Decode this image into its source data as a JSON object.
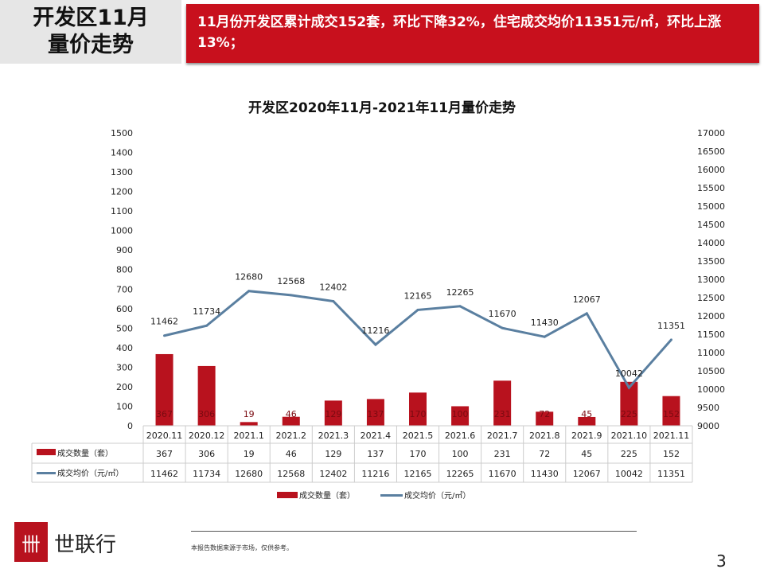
{
  "header": {
    "title_line1": "开发区11月",
    "title_line2": "量价走势",
    "summary": "11月份开发区累计成交152套，环比下降32%，住宅成交均价11351元/㎡，环比上涨13%；"
  },
  "chart_data": {
    "type": "bar+line",
    "title": "开发区2020年11月-2021年11月量价走势",
    "categories": [
      "2020.11",
      "2020.12",
      "2021.1",
      "2021.2",
      "2021.3",
      "2021.4",
      "2021.5",
      "2021.6",
      "2021.7",
      "2021.8",
      "2021.9",
      "2021.10",
      "2021.11"
    ],
    "series": [
      {
        "name": "成交数量（套）",
        "type": "bar",
        "axis": "left",
        "color": "#b8121e",
        "values": [
          367,
          306,
          19,
          46,
          129,
          137,
          170,
          100,
          231,
          72,
          45,
          225,
          152
        ]
      },
      {
        "name": "成交均价（元/㎡）",
        "type": "line",
        "axis": "right",
        "color": "#5a7fa0",
        "values": [
          11462,
          11734,
          12680,
          12568,
          12402,
          11216,
          12165,
          12265,
          11670,
          11430,
          12067,
          10042,
          11351
        ]
      }
    ],
    "ylim_left": [
      0,
      1500
    ],
    "ytick_left_step": 100,
    "ylim_right": [
      9000,
      17000
    ],
    "ytick_right_step": 500,
    "data_table": true,
    "legend": "bottom"
  },
  "footer": {
    "brand": "世联行",
    "logo_glyph": "卌",
    "note": "本报告数据来源于市场，仅供参考。",
    "page": "3"
  }
}
